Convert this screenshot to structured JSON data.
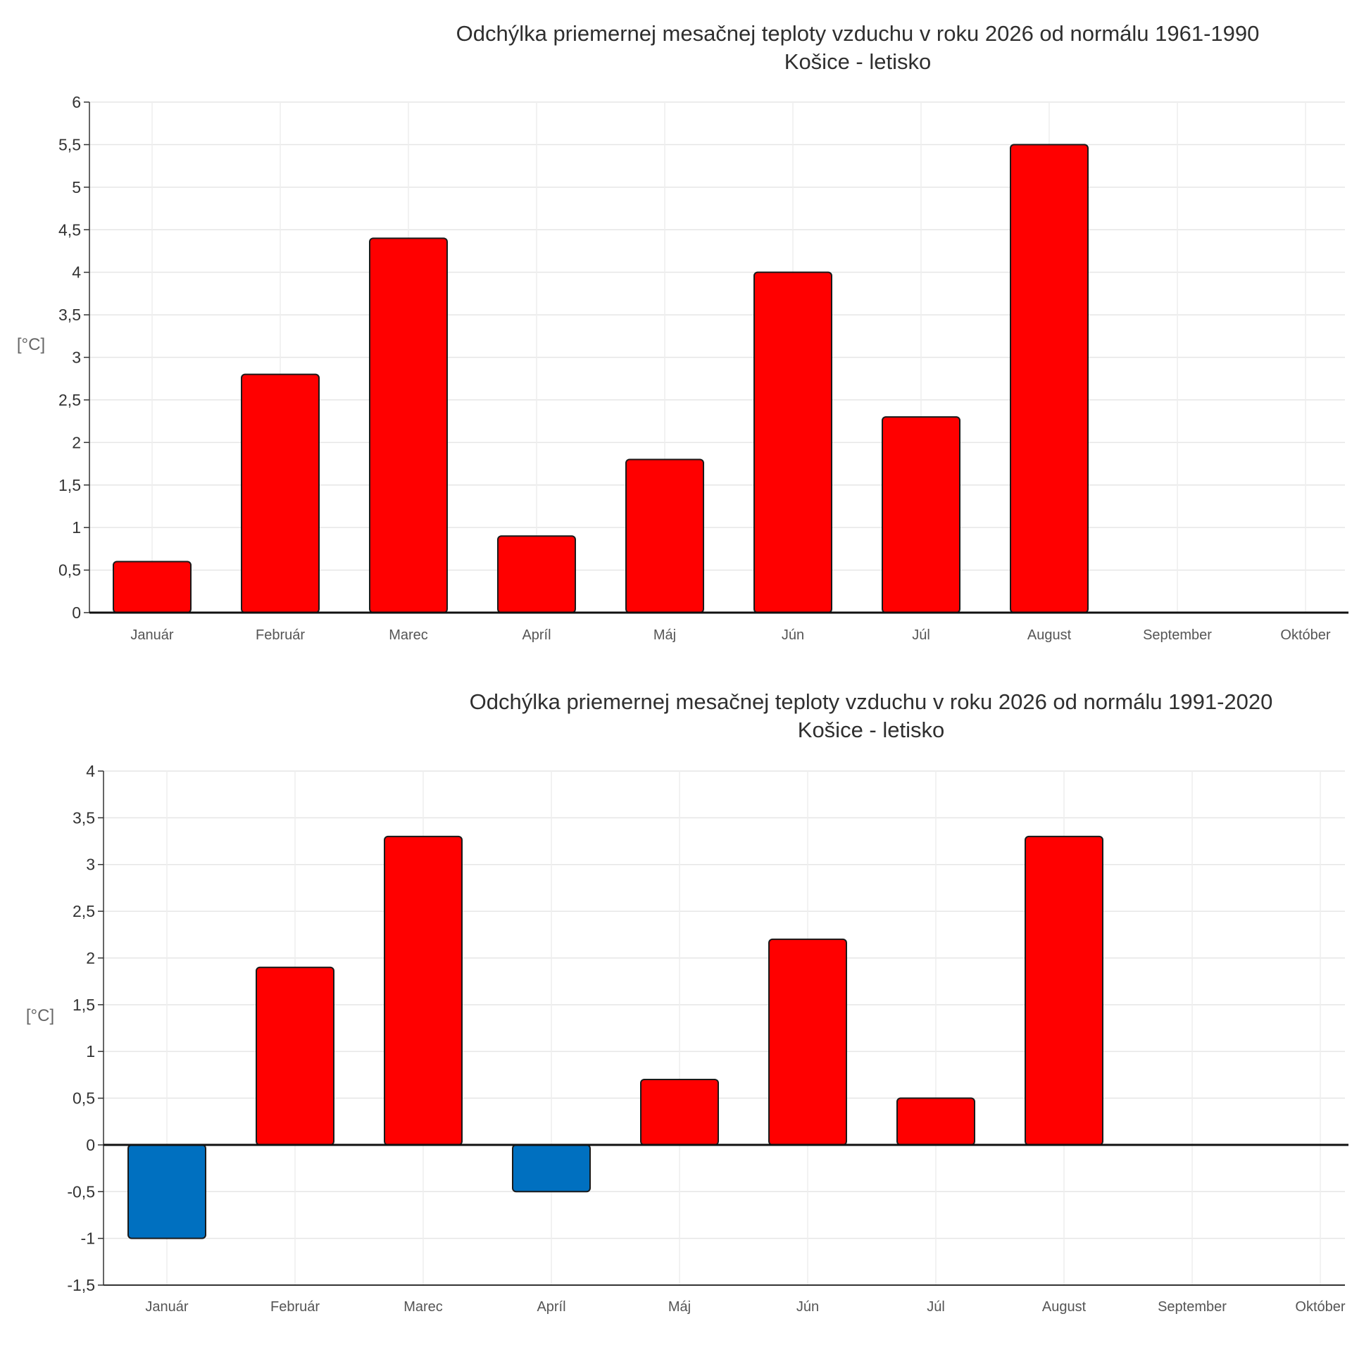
{
  "chart_data": [
    {
      "type": "bar",
      "title": "Odchýlka priemernej mesačnej teploty vzduchu v roku 2026 od normálu 1961-1990",
      "subtitle": "Košice - letisko",
      "ylabel": "[°C]",
      "categories": [
        "Január",
        "Február",
        "Marec",
        "Apríl",
        "Máj",
        "Jún",
        "Júl",
        "August",
        "September",
        "Október"
      ],
      "values": [
        0.6,
        2.8,
        4.4,
        0.9,
        1.8,
        4.0,
        2.3,
        5.5,
        null,
        null
      ],
      "ylim": [
        0,
        6
      ],
      "yticks": [
        "0",
        "0,5",
        "1",
        "1,5",
        "2",
        "2,5",
        "3",
        "3,5",
        "4",
        "4,5",
        "5",
        "5,5",
        "6"
      ],
      "ytick_values": [
        0,
        0.5,
        1,
        1.5,
        2,
        2.5,
        3,
        3.5,
        4,
        4.5,
        5,
        5.5,
        6
      ],
      "grid": true,
      "colors": {
        "positive": "#ff0000",
        "negative": "#0070c0"
      }
    },
    {
      "type": "bar",
      "title": "Odchýlka priemernej mesačnej teploty vzduchu v roku 2026 od normálu 1991-2020",
      "subtitle": "Košice - letisko",
      "ylabel": "[°C]",
      "categories": [
        "Január",
        "Február",
        "Marec",
        "Apríl",
        "Máj",
        "Jún",
        "Júl",
        "August",
        "September",
        "Október"
      ],
      "values": [
        -1.0,
        1.9,
        3.3,
        -0.5,
        0.7,
        2.2,
        0.5,
        3.3,
        null,
        null
      ],
      "ylim": [
        -1.5,
        4
      ],
      "yticks": [
        "-1,5",
        "-1",
        "-0,5",
        "0",
        "0,5",
        "1",
        "1,5",
        "2",
        "2,5",
        "3",
        "3,5",
        "4"
      ],
      "ytick_values": [
        -1.5,
        -1,
        -0.5,
        0,
        0.5,
        1,
        1.5,
        2,
        2.5,
        3,
        3.5,
        4
      ],
      "grid": true,
      "colors": {
        "positive": "#ff0000",
        "negative": "#0070c0"
      }
    }
  ]
}
